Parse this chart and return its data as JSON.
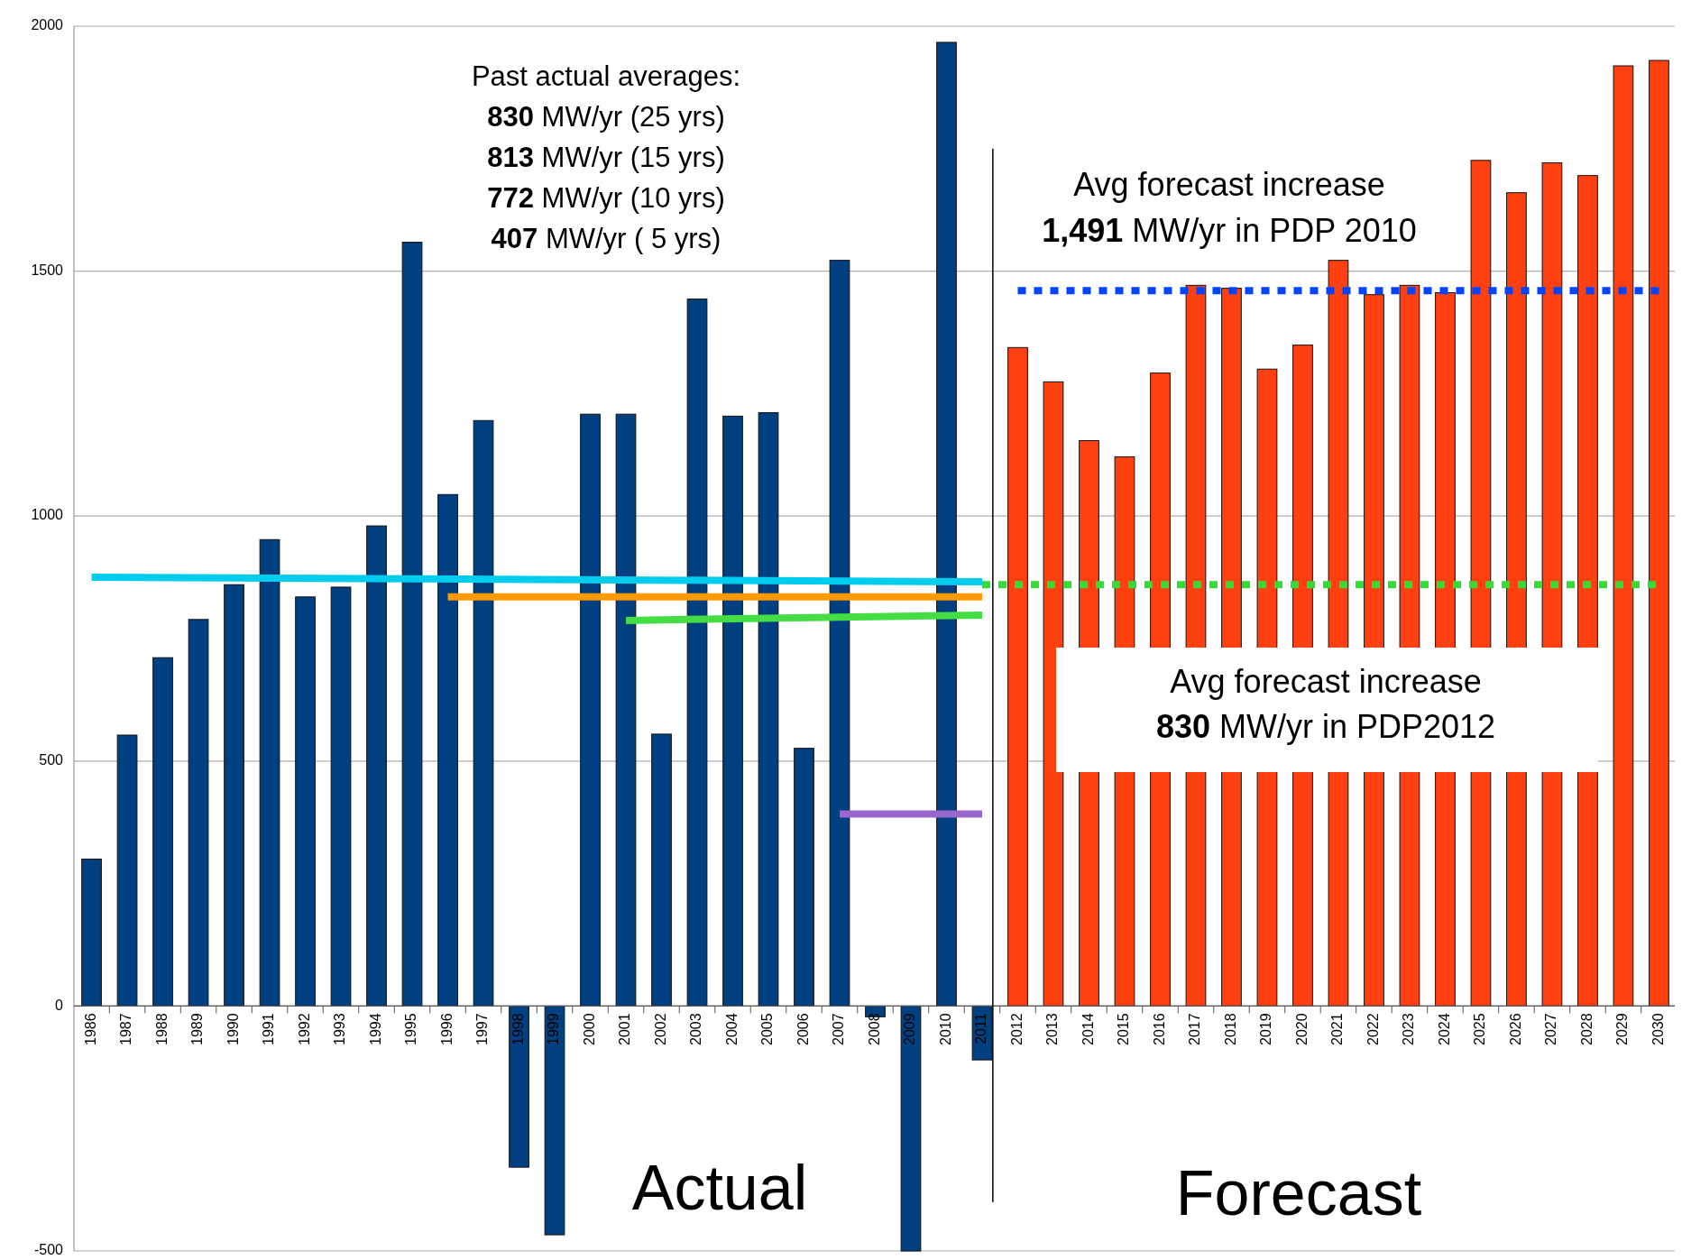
{
  "chart_data": {
    "type": "bar",
    "categories": [
      "1986",
      "1987",
      "1988",
      "1989",
      "1990",
      "1991",
      "1992",
      "1993",
      "1994",
      "1995",
      "1996",
      "1997",
      "1998",
      "1999",
      "2000",
      "2001",
      "2002",
      "2003",
      "2004",
      "2005",
      "2006",
      "2007",
      "2008",
      "2009",
      "2010",
      "2011",
      "2012",
      "2013",
      "2014",
      "2015",
      "2016",
      "2017",
      "2018",
      "2019",
      "2020",
      "2021",
      "2022",
      "2023",
      "2024",
      "2025",
      "2026",
      "2027",
      "2028",
      "2029",
      "2030"
    ],
    "series": [
      {
        "colors": [
          "#004080",
          "#004080",
          "#004080",
          "#004080",
          "#004080",
          "#004080",
          "#004080",
          "#004080",
          "#004080",
          "#004080",
          "#004080",
          "#004080",
          "#004080",
          "#004080",
          "#004080",
          "#004080",
          "#004080",
          "#004080",
          "#004080",
          "#004080",
          "#004080",
          "#004080",
          "#004080",
          "#004080",
          "#004080",
          "#004080",
          "#ff4010",
          "#ff4010",
          "#ff4010",
          "#ff4010",
          "#ff4010",
          "#ff4010",
          "#ff4010",
          "#ff4010",
          "#ff4010",
          "#ff4010",
          "#ff4010",
          "#ff4010",
          "#ff4010",
          "#ff4010",
          "#ff4010",
          "#ff4010",
          "#ff4010",
          "#ff4010",
          "#ff4010"
        ],
        "values": [
          300,
          553,
          711,
          789,
          860,
          952,
          835,
          855,
          980,
          1559,
          1044,
          1195,
          -329,
          -467,
          1208,
          1208,
          555,
          1443,
          1204,
          1211,
          526,
          1522,
          -22,
          -500,
          1967,
          -110,
          1344,
          1274,
          1154,
          1121,
          1292,
          1471,
          1465,
          1300,
          1349,
          1522,
          1452,
          1471,
          1456,
          1726,
          1660,
          1721,
          1695,
          1919,
          1930
        ]
      },
      {
        "type": "line",
        "color": "#00ccee",
        "values": [
          875,
          null,
          null,
          null,
          null,
          null,
          null,
          null,
          null,
          null,
          null,
          null,
          null,
          null,
          null,
          null,
          null,
          null,
          null,
          null,
          null,
          null,
          null,
          null,
          null,
          866,
          null,
          null,
          null,
          null,
          null,
          null,
          null,
          null,
          null,
          null,
          null,
          null,
          null,
          null,
          null,
          null,
          null,
          null,
          null
        ],
        "line_style": "solid"
      },
      {
        "type": "line",
        "color": "#ff9900",
        "values": [
          null,
          null,
          null,
          null,
          null,
          null,
          null,
          null,
          null,
          null,
          835,
          null,
          null,
          null,
          null,
          null,
          null,
          null,
          null,
          null,
          null,
          null,
          null,
          null,
          null,
          835,
          null,
          null,
          null,
          null,
          null,
          null,
          null,
          null,
          null,
          null,
          null,
          null,
          null,
          null,
          null,
          null,
          null,
          null,
          null
        ],
        "line_style": "solid"
      },
      {
        "type": "line",
        "color": "#44dd44",
        "values": [
          null,
          null,
          null,
          null,
          null,
          null,
          null,
          null,
          null,
          null,
          null,
          null,
          null,
          null,
          null,
          787,
          null,
          null,
          null,
          null,
          null,
          null,
          null,
          null,
          null,
          798,
          null,
          null,
          null,
          null,
          null,
          null,
          null,
          null,
          null,
          null,
          null,
          null,
          null,
          null,
          null,
          null,
          null,
          null,
          null
        ],
        "line_style": "solid"
      },
      {
        "type": "line",
        "color": "#9966cc",
        "values": [
          null,
          null,
          null,
          null,
          null,
          null,
          null,
          null,
          null,
          null,
          null,
          null,
          null,
          null,
          null,
          null,
          null,
          null,
          null,
          null,
          null,
          392,
          null,
          null,
          null,
          392,
          null,
          null,
          null,
          null,
          null,
          null,
          null,
          null,
          null,
          null,
          null,
          null,
          null,
          null,
          null,
          null,
          null,
          null,
          null
        ],
        "line_style": "solid"
      },
      {
        "type": "line",
        "color": "#0044ff",
        "values": [
          null,
          null,
          null,
          null,
          null,
          null,
          null,
          null,
          null,
          null,
          null,
          null,
          null,
          null,
          null,
          null,
          null,
          null,
          null,
          null,
          null,
          null,
          null,
          null,
          null,
          null,
          1460,
          null,
          null,
          null,
          null,
          null,
          null,
          null,
          null,
          null,
          null,
          null,
          null,
          null,
          null,
          null,
          null,
          null,
          1460
        ],
        "line_style": "dotted"
      },
      {
        "type": "line",
        "color": "#33dd33",
        "values": [
          null,
          null,
          null,
          null,
          null,
          null,
          null,
          null,
          null,
          null,
          null,
          null,
          null,
          null,
          null,
          null,
          null,
          null,
          null,
          null,
          null,
          null,
          null,
          null,
          null,
          860,
          null,
          null,
          null,
          null,
          null,
          null,
          null,
          null,
          null,
          null,
          null,
          null,
          null,
          null,
          null,
          null,
          null,
          null,
          860
        ],
        "line_style": "dotted"
      }
    ],
    "ylim": [
      -500,
      2000
    ],
    "yticks": [
      -500,
      0,
      500,
      1000,
      1500,
      2000
    ],
    "grid": "y",
    "ref_lines": [
      {
        "axis": "x",
        "value": "2011",
        "color": "#000000"
      }
    ],
    "annotations": [
      "Past actual averages:\n830 MW/yr (25 yrs)\n813 MW/yr (15 yrs)\n772 MW/yr (10 yrs)\n407 MW/yr ( 5 yrs)",
      "Avg forecast increase\n1,491 MW/yr in PDP 2010",
      "Avg forecast increase\n830 MW/yr in PDP2012",
      "Actual",
      "Forecast"
    ]
  }
}
